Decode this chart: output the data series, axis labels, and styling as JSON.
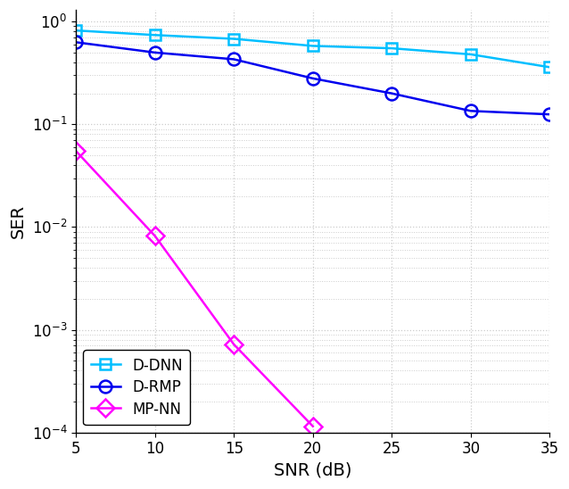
{
  "snr": [
    5,
    10,
    15,
    20,
    25,
    30,
    35
  ],
  "D_DNN": [
    0.82,
    0.74,
    0.68,
    0.58,
    0.55,
    0.48,
    0.36
  ],
  "D_RMP": [
    0.63,
    0.5,
    0.43,
    0.28,
    0.2,
    0.135,
    0.125
  ],
  "MP_NN_snr": [
    5,
    10,
    15,
    20
  ],
  "MP_NN": [
    0.055,
    0.0082,
    0.00072,
    0.000115
  ],
  "D_DNN_color": "#00BFFF",
  "D_RMP_color": "#0000EE",
  "MP_NN_color": "#FF00FF",
  "xlabel": "SNR (dB)",
  "ylabel": "SER",
  "ylim_min": 0.0001,
  "ylim_max": 1.3,
  "xlim_min": 5,
  "xlim_max": 35,
  "legend_labels": [
    "D-DNN",
    "D-RMP",
    "MP-NN"
  ],
  "grid_color": "#cccccc",
  "bg_color": "#ffffff"
}
